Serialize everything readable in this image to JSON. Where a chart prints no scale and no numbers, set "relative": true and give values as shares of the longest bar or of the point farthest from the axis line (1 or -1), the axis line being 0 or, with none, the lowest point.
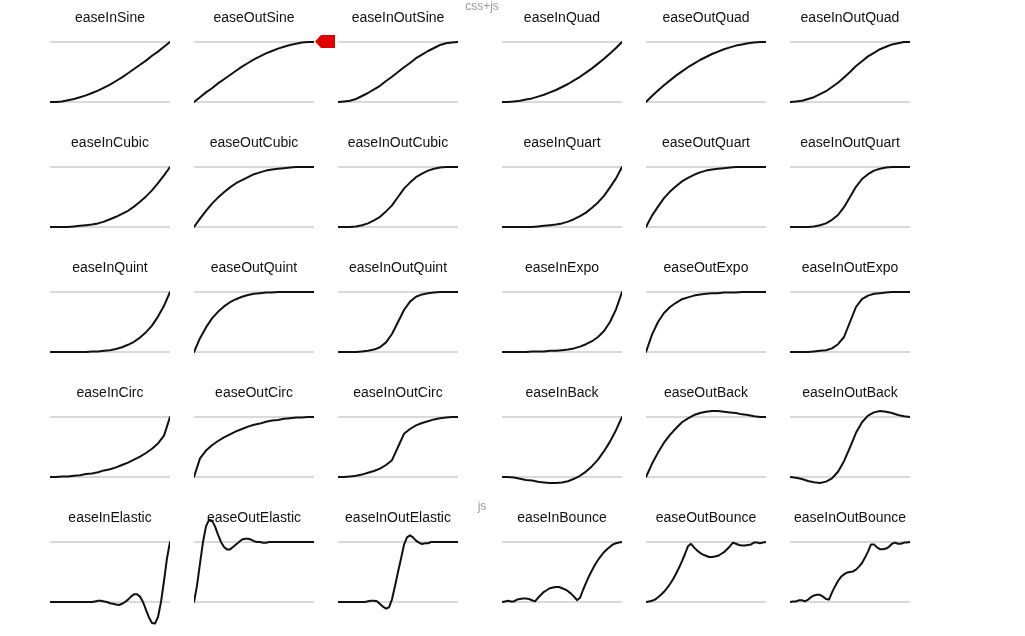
{
  "chart_data": [
    {
      "type": "line",
      "title": "easeInSine",
      "relative": true,
      "color": "#111111",
      "categories": [
        null,
        null,
        null,
        null,
        null,
        null,
        null,
        null,
        null,
        null,
        null,
        null,
        null,
        null,
        null,
        null,
        null,
        null,
        null,
        null,
        null
      ],
      "values": [
        0,
        0,
        0.01,
        0.03,
        0.05,
        0.08,
        0.11,
        0.15,
        0.19,
        0.24,
        0.29,
        0.35,
        0.41,
        0.48,
        0.55,
        0.62,
        0.69,
        0.77,
        0.84,
        0.92,
        1
      ],
      "ref_lines": [
        {
          "axis": "y",
          "value": 0,
          "color": "#cccccc"
        },
        {
          "axis": "y",
          "value": 1,
          "color": "#cccccc"
        }
      ]
    },
    {
      "type": "line",
      "title": "easeOutSine",
      "relative": true,
      "color": "#111111",
      "categories": [
        null,
        null,
        null,
        null,
        null,
        null,
        null,
        null,
        null,
        null,
        null,
        null,
        null,
        null,
        null,
        null,
        null,
        null,
        null,
        null,
        null
      ],
      "values": [
        0,
        0.08,
        0.16,
        0.23,
        0.31,
        0.38,
        0.45,
        0.52,
        0.59,
        0.65,
        0.71,
        0.76,
        0.81,
        0.85,
        0.89,
        0.92,
        0.95,
        0.97,
        0.99,
        1,
        1
      ],
      "ref_lines": [
        {
          "axis": "y",
          "value": 0,
          "color": "#cccccc"
        },
        {
          "axis": "y",
          "value": 1,
          "color": "#cccccc"
        }
      ]
    },
    {
      "type": "line",
      "title": "easeInOutSine",
      "relative": true,
      "color": "#111111",
      "categories": [
        null,
        null,
        null,
        null,
        null,
        null,
        null,
        null,
        null,
        null,
        null,
        null,
        null,
        null,
        null,
        null,
        null,
        null,
        null,
        null,
        null
      ],
      "values": [
        0,
        0.01,
        0.02,
        0.05,
        0.1,
        0.15,
        0.21,
        0.27,
        0.35,
        0.42,
        0.5,
        0.58,
        0.65,
        0.73,
        0.79,
        0.85,
        0.9,
        0.95,
        0.98,
        0.99,
        1
      ],
      "ref_lines": [
        {
          "axis": "y",
          "value": 0,
          "color": "#cccccc"
        },
        {
          "axis": "y",
          "value": 1,
          "color": "#cccccc"
        }
      ]
    },
    {
      "type": "line",
      "title": "easeInQuad",
      "relative": true,
      "color": "#111111",
      "annotations": [
        "css+js"
      ],
      "categories": [
        null,
        null,
        null,
        null,
        null,
        null,
        null,
        null,
        null,
        null,
        null,
        null,
        null,
        null,
        null,
        null,
        null,
        null,
        null,
        null,
        null
      ],
      "values": [
        0,
        0,
        0.01,
        0.02,
        0.04,
        0.06,
        0.09,
        0.12,
        0.16,
        0.2,
        0.25,
        0.3,
        0.36,
        0.42,
        0.49,
        0.56,
        0.64,
        0.72,
        0.81,
        0.9,
        1
      ],
      "ref_lines": [
        {
          "axis": "y",
          "value": 0,
          "color": "#cccccc"
        },
        {
          "axis": "y",
          "value": 1,
          "color": "#cccccc"
        }
      ]
    },
    {
      "type": "line",
      "title": "easeOutQuad",
      "relative": true,
      "color": "#111111",
      "categories": [
        null,
        null,
        null,
        null,
        null,
        null,
        null,
        null,
        null,
        null,
        null,
        null,
        null,
        null,
        null,
        null,
        null,
        null,
        null,
        null,
        null
      ],
      "values": [
        0,
        0.1,
        0.19,
        0.28,
        0.36,
        0.44,
        0.51,
        0.58,
        0.64,
        0.7,
        0.75,
        0.8,
        0.84,
        0.88,
        0.91,
        0.94,
        0.96,
        0.98,
        0.99,
        1,
        1
      ],
      "ref_lines": [
        {
          "axis": "y",
          "value": 0,
          "color": "#cccccc"
        },
        {
          "axis": "y",
          "value": 1,
          "color": "#cccccc"
        }
      ]
    },
    {
      "type": "line",
      "title": "easeInOutQuad",
      "relative": true,
      "color": "#111111",
      "categories": [
        null,
        null,
        null,
        null,
        null,
        null,
        null,
        null,
        null,
        null,
        null,
        null,
        null,
        null,
        null,
        null,
        null,
        null,
        null,
        null,
        null
      ],
      "values": [
        0,
        0.01,
        0.02,
        0.05,
        0.08,
        0.13,
        0.18,
        0.25,
        0.32,
        0.41,
        0.5,
        0.6,
        0.68,
        0.76,
        0.82,
        0.88,
        0.92,
        0.96,
        0.98,
        1,
        1
      ],
      "ref_lines": [
        {
          "axis": "y",
          "value": 0,
          "color": "#cccccc"
        },
        {
          "axis": "y",
          "value": 1,
          "color": "#cccccc"
        }
      ]
    },
    {
      "type": "line",
      "title": "easeInCubic",
      "relative": true,
      "color": "#111111",
      "categories": [
        null,
        null,
        null,
        null,
        null,
        null,
        null,
        null,
        null,
        null,
        null,
        null,
        null,
        null,
        null,
        null,
        null,
        null,
        null,
        null,
        null
      ],
      "values": [
        0,
        0,
        0,
        0,
        0.01,
        0.02,
        0.03,
        0.04,
        0.06,
        0.09,
        0.13,
        0.17,
        0.22,
        0.27,
        0.34,
        0.42,
        0.51,
        0.61,
        0.73,
        0.86,
        1
      ],
      "ref_lines": [
        {
          "axis": "y",
          "value": 0,
          "color": "#cccccc"
        },
        {
          "axis": "y",
          "value": 1,
          "color": "#cccccc"
        }
      ]
    },
    {
      "type": "line",
      "title": "easeOutCubic",
      "relative": true,
      "color": "#111111",
      "categories": [
        null,
        null,
        null,
        null,
        null,
        null,
        null,
        null,
        null,
        null,
        null,
        null,
        null,
        null,
        null,
        null,
        null,
        null,
        null,
        null,
        null
      ],
      "values": [
        0,
        0.14,
        0.27,
        0.39,
        0.49,
        0.58,
        0.66,
        0.73,
        0.78,
        0.83,
        0.88,
        0.91,
        0.94,
        0.96,
        0.97,
        0.98,
        0.99,
        1,
        1,
        1,
        1
      ],
      "ref_lines": [
        {
          "axis": "y",
          "value": 0,
          "color": "#cccccc"
        },
        {
          "axis": "y",
          "value": 1,
          "color": "#cccccc"
        }
      ]
    },
    {
      "type": "line",
      "title": "easeInOutCubic",
      "relative": true,
      "color": "#111111",
      "categories": [
        null,
        null,
        null,
        null,
        null,
        null,
        null,
        null,
        null,
        null,
        null,
        null,
        null,
        null,
        null,
        null,
        null,
        null,
        null,
        null,
        null
      ],
      "values": [
        0,
        0,
        0,
        0.01,
        0.03,
        0.06,
        0.11,
        0.17,
        0.26,
        0.36,
        0.5,
        0.64,
        0.74,
        0.83,
        0.89,
        0.94,
        0.97,
        0.99,
        1,
        1,
        1
      ],
      "ref_lines": [
        {
          "axis": "y",
          "value": 0,
          "color": "#cccccc"
        },
        {
          "axis": "y",
          "value": 1,
          "color": "#cccccc"
        }
      ]
    },
    {
      "type": "line",
      "title": "easeInQuart",
      "relative": true,
      "color": "#111111",
      "categories": [
        null,
        null,
        null,
        null,
        null,
        null,
        null,
        null,
        null,
        null,
        null,
        null,
        null,
        null,
        null,
        null,
        null,
        null,
        null,
        null,
        null
      ],
      "values": [
        0,
        0,
        0,
        0,
        0,
        0,
        0.01,
        0.02,
        0.03,
        0.04,
        0.06,
        0.09,
        0.13,
        0.18,
        0.24,
        0.32,
        0.41,
        0.52,
        0.66,
        0.81,
        1
      ],
      "ref_lines": [
        {
          "axis": "y",
          "value": 0,
          "color": "#cccccc"
        },
        {
          "axis": "y",
          "value": 1,
          "color": "#cccccc"
        }
      ]
    },
    {
      "type": "line",
      "title": "easeOutQuart",
      "relative": true,
      "color": "#111111",
      "categories": [
        null,
        null,
        null,
        null,
        null,
        null,
        null,
        null,
        null,
        null,
        null,
        null,
        null,
        null,
        null,
        null,
        null,
        null,
        null,
        null,
        null
      ],
      "values": [
        0,
        0.19,
        0.34,
        0.48,
        0.59,
        0.68,
        0.76,
        0.82,
        0.87,
        0.91,
        0.94,
        0.96,
        0.97,
        0.98,
        0.99,
        1,
        1,
        1,
        1,
        1,
        1
      ],
      "ref_lines": [
        {
          "axis": "y",
          "value": 0,
          "color": "#cccccc"
        },
        {
          "axis": "y",
          "value": 1,
          "color": "#cccccc"
        }
      ]
    },
    {
      "type": "line",
      "title": "easeInOutQuart",
      "relative": true,
      "color": "#111111",
      "categories": [
        null,
        null,
        null,
        null,
        null,
        null,
        null,
        null,
        null,
        null,
        null,
        null,
        null,
        null,
        null,
        null,
        null,
        null,
        null,
        null,
        null
      ],
      "values": [
        0,
        0,
        0,
        0,
        0.01,
        0.03,
        0.06,
        0.12,
        0.2,
        0.33,
        0.5,
        0.67,
        0.8,
        0.88,
        0.94,
        0.97,
        0.99,
        1,
        1,
        1,
        1
      ],
      "ref_lines": [
        {
          "axis": "y",
          "value": 0,
          "color": "#cccccc"
        },
        {
          "axis": "y",
          "value": 1,
          "color": "#cccccc"
        }
      ]
    },
    {
      "type": "line",
      "title": "easeInQuint",
      "relative": true,
      "color": "#111111",
      "categories": [
        null,
        null,
        null,
        null,
        null,
        null,
        null,
        null,
        null,
        null,
        null,
        null,
        null,
        null,
        null,
        null,
        null,
        null,
        null,
        null,
        null
      ],
      "values": [
        0,
        0,
        0,
        0,
        0,
        0,
        0,
        0.01,
        0.01,
        0.02,
        0.03,
        0.05,
        0.08,
        0.12,
        0.17,
        0.24,
        0.33,
        0.44,
        0.59,
        0.77,
        1
      ],
      "ref_lines": [
        {
          "axis": "y",
          "value": 0,
          "color": "#cccccc"
        },
        {
          "axis": "y",
          "value": 1,
          "color": "#cccccc"
        }
      ]
    },
    {
      "type": "line",
      "title": "easeOutQuint",
      "relative": true,
      "color": "#111111",
      "categories": [
        null,
        null,
        null,
        null,
        null,
        null,
        null,
        null,
        null,
        null,
        null,
        null,
        null,
        null,
        null,
        null,
        null,
        null,
        null,
        null,
        null
      ],
      "values": [
        0,
        0.23,
        0.41,
        0.56,
        0.67,
        0.76,
        0.83,
        0.88,
        0.92,
        0.95,
        0.97,
        0.98,
        0.99,
        0.99,
        1,
        1,
        1,
        1,
        1,
        1,
        1
      ],
      "ref_lines": [
        {
          "axis": "y",
          "value": 0,
          "color": "#cccccc"
        },
        {
          "axis": "y",
          "value": 1,
          "color": "#cccccc"
        }
      ]
    },
    {
      "type": "line",
      "title": "easeInOutQuint",
      "relative": true,
      "color": "#111111",
      "categories": [
        null,
        null,
        null,
        null,
        null,
        null,
        null,
        null,
        null,
        null,
        null,
        null,
        null,
        null,
        null,
        null,
        null,
        null,
        null,
        null,
        null
      ],
      "values": [
        0,
        0,
        0,
        0,
        0.01,
        0.02,
        0.04,
        0.08,
        0.16,
        0.3,
        0.5,
        0.7,
        0.84,
        0.92,
        0.96,
        0.98,
        0.99,
        1,
        1,
        1,
        1
      ],
      "ref_lines": [
        {
          "axis": "y",
          "value": 0,
          "color": "#cccccc"
        },
        {
          "axis": "y",
          "value": 1,
          "color": "#cccccc"
        }
      ]
    },
    {
      "type": "line",
      "title": "easeInExpo",
      "relative": true,
      "color": "#111111",
      "categories": [
        null,
        null,
        null,
        null,
        null,
        null,
        null,
        null,
        null,
        null,
        null,
        null,
        null,
        null,
        null,
        null,
        null,
        null,
        null,
        null,
        null
      ],
      "values": [
        0,
        0,
        0,
        0,
        0,
        0.01,
        0.01,
        0.01,
        0.02,
        0.02,
        0.03,
        0.04,
        0.06,
        0.09,
        0.13,
        0.18,
        0.25,
        0.35,
        0.5,
        0.71,
        1
      ],
      "ref_lines": [
        {
          "axis": "y",
          "value": 0,
          "color": "#cccccc"
        },
        {
          "axis": "y",
          "value": 1,
          "color": "#cccccc"
        }
      ]
    },
    {
      "type": "line",
      "title": "easeOutExpo",
      "relative": true,
      "color": "#111111",
      "categories": [
        null,
        null,
        null,
        null,
        null,
        null,
        null,
        null,
        null,
        null,
        null,
        null,
        null,
        null,
        null,
        null,
        null,
        null,
        null,
        null,
        null
      ],
      "values": [
        0,
        0.29,
        0.5,
        0.65,
        0.75,
        0.82,
        0.88,
        0.91,
        0.94,
        0.96,
        0.97,
        0.98,
        0.98,
        0.99,
        0.99,
        0.99,
        1,
        1,
        1,
        1,
        1
      ],
      "ref_lines": [
        {
          "axis": "y",
          "value": 0,
          "color": "#cccccc"
        },
        {
          "axis": "y",
          "value": 1,
          "color": "#cccccc"
        }
      ]
    },
    {
      "type": "line",
      "title": "easeInOutExpo",
      "relative": true,
      "color": "#111111",
      "categories": [
        null,
        null,
        null,
        null,
        null,
        null,
        null,
        null,
        null,
        null,
        null,
        null,
        null,
        null,
        null,
        null,
        null,
        null,
        null,
        null,
        null
      ],
      "values": [
        0,
        0,
        0,
        0,
        0.01,
        0.02,
        0.03,
        0.06,
        0.13,
        0.25,
        0.5,
        0.75,
        0.88,
        0.94,
        0.97,
        0.98,
        0.99,
        1,
        1,
        1,
        1
      ],
      "ref_lines": [
        {
          "axis": "y",
          "value": 0,
          "color": "#cccccc"
        },
        {
          "axis": "y",
          "value": 1,
          "color": "#cccccc"
        }
      ]
    },
    {
      "type": "line",
      "title": "easeInCirc",
      "relative": true,
      "color": "#111111",
      "categories": [
        null,
        null,
        null,
        null,
        null,
        null,
        null,
        null,
        null,
        null,
        null,
        null,
        null,
        null,
        null,
        null,
        null,
        null,
        null,
        null,
        null
      ],
      "values": [
        0,
        0,
        0.01,
        0.01,
        0.02,
        0.03,
        0.05,
        0.06,
        0.08,
        0.11,
        0.13,
        0.16,
        0.2,
        0.24,
        0.29,
        0.34,
        0.4,
        0.47,
        0.56,
        0.69,
        1
      ],
      "ref_lines": [
        {
          "axis": "y",
          "value": 0,
          "color": "#cccccc"
        },
        {
          "axis": "y",
          "value": 1,
          "color": "#cccccc"
        }
      ]
    },
    {
      "type": "line",
      "title": "easeOutCirc",
      "relative": true,
      "color": "#111111",
      "categories": [
        null,
        null,
        null,
        null,
        null,
        null,
        null,
        null,
        null,
        null,
        null,
        null,
        null,
        null,
        null,
        null,
        null,
        null,
        null,
        null,
        null
      ],
      "values": [
        0,
        0.31,
        0.44,
        0.53,
        0.6,
        0.66,
        0.71,
        0.76,
        0.8,
        0.84,
        0.87,
        0.89,
        0.92,
        0.94,
        0.95,
        0.97,
        0.98,
        0.99,
        0.99,
        1,
        1
      ],
      "ref_lines": [
        {
          "axis": "y",
          "value": 0,
          "color": "#cccccc"
        },
        {
          "axis": "y",
          "value": 1,
          "color": "#cccccc"
        }
      ]
    },
    {
      "type": "line",
      "title": "easeInOutCirc",
      "relative": true,
      "color": "#111111",
      "categories": [
        null,
        null,
        null,
        null,
        null,
        null,
        null,
        null,
        null,
        null,
        null,
        null,
        null,
        null,
        null,
        null,
        null,
        null,
        null,
        null,
        null
      ],
      "values": [
        0,
        0,
        0.01,
        0.02,
        0.04,
        0.07,
        0.1,
        0.14,
        0.2,
        0.28,
        0.5,
        0.72,
        0.8,
        0.86,
        0.9,
        0.93,
        0.96,
        0.98,
        0.99,
        1,
        1
      ],
      "ref_lines": [
        {
          "axis": "y",
          "value": 0,
          "color": "#cccccc"
        },
        {
          "axis": "y",
          "value": 1,
          "color": "#cccccc"
        }
      ]
    },
    {
      "type": "line",
      "title": "easeInBack",
      "relative": true,
      "color": "#111111",
      "categories": [
        null,
        null,
        null,
        null,
        null,
        null,
        null,
        null,
        null,
        null,
        null,
        null,
        null,
        null,
        null,
        null,
        null,
        null,
        null,
        null,
        null
      ],
      "values": [
        0,
        0,
        -0.01,
        -0.03,
        -0.05,
        -0.06,
        -0.08,
        -0.09,
        -0.1,
        -0.1,
        -0.09,
        -0.07,
        -0.03,
        0.02,
        0.09,
        0.18,
        0.29,
        0.43,
        0.59,
        0.78,
        1
      ],
      "ref_lines": [
        {
          "axis": "y",
          "value": 0,
          "color": "#cccccc"
        },
        {
          "axis": "y",
          "value": 1,
          "color": "#cccccc"
        }
      ]
    },
    {
      "type": "line",
      "title": "easeOutBack",
      "relative": true,
      "color": "#111111",
      "categories": [
        null,
        null,
        null,
        null,
        null,
        null,
        null,
        null,
        null,
        null,
        null,
        null,
        null,
        null,
        null,
        null,
        null,
        null,
        null,
        null,
        null
      ],
      "values": [
        0,
        0.2,
        0.37,
        0.52,
        0.64,
        0.74,
        0.83,
        0.89,
        0.94,
        0.97,
        0.99,
        1,
        1,
        0.99,
        0.98,
        0.97,
        0.95,
        0.94,
        0.92,
        0.91,
        0.91
      ],
      "ref_lines": [
        {
          "axis": "y",
          "value": 0,
          "color": "#cccccc"
        },
        {
          "axis": "y",
          "value": 0.91,
          "color": "#cccccc"
        }
      ]
    },
    {
      "type": "line",
      "title": "easeInOutBack",
      "relative": true,
      "color": "#111111",
      "categories": [
        null,
        null,
        null,
        null,
        null,
        null,
        null,
        null,
        null,
        null,
        null,
        null,
        null,
        null,
        null,
        null,
        null,
        null,
        null,
        null,
        null
      ],
      "values": [
        0,
        -0.01,
        -0.03,
        -0.06,
        -0.08,
        -0.09,
        -0.07,
        -0.02,
        0.08,
        0.24,
        0.45,
        0.67,
        0.83,
        0.93,
        0.98,
        1,
        0.99,
        0.97,
        0.94,
        0.92,
        0.91
      ],
      "ref_lines": [
        {
          "axis": "y",
          "value": 0,
          "color": "#cccccc"
        },
        {
          "axis": "y",
          "value": 0.91,
          "color": "#cccccc"
        }
      ]
    },
    {
      "type": "line",
      "title": "easeInElastic",
      "relative": true,
      "color": "#111111",
      "categories": [
        null,
        null,
        null,
        null,
        null,
        null,
        null,
        null,
        null,
        null,
        null,
        null,
        null,
        null,
        null,
        null,
        null,
        null,
        null,
        null,
        null,
        null,
        null,
        null,
        null,
        null,
        null,
        null,
        null,
        null,
        null,
        null,
        null,
        null,
        null,
        null,
        null,
        null,
        null,
        null,
        null
      ],
      "values": [
        0,
        0,
        0,
        0,
        0,
        0,
        0,
        0,
        0,
        0,
        0,
        0,
        0,
        0,
        0,
        0.01,
        0.02,
        0.02,
        0.01,
        0,
        -0.02,
        -0.03,
        -0.04,
        -0.05,
        -0.03,
        0,
        0.04,
        0.09,
        0.13,
        0.13,
        0.09,
        0,
        -0.13,
        -0.26,
        -0.35,
        -0.36,
        -0.25,
        0,
        0.35,
        0.73,
        1
      ],
      "ref_lines": [
        {
          "axis": "y",
          "value": 0,
          "color": "#cccccc"
        },
        {
          "axis": "y",
          "value": 1,
          "color": "#cccccc"
        }
      ]
    },
    {
      "type": "line",
      "title": "easeOutElastic",
      "relative": true,
      "color": "#111111",
      "categories": [
        null,
        null,
        null,
        null,
        null,
        null,
        null,
        null,
        null,
        null,
        null,
        null,
        null,
        null,
        null,
        null,
        null,
        null,
        null,
        null,
        null,
        null,
        null,
        null,
        null,
        null,
        null,
        null,
        null,
        null,
        null,
        null,
        null,
        null,
        null,
        null,
        null,
        null,
        null,
        null,
        null
      ],
      "values": [
        0,
        0.2,
        0.47,
        0.73,
        0.92,
        1,
        0.99,
        0.92,
        0.82,
        0.73,
        0.67,
        0.64,
        0.64,
        0.67,
        0.7,
        0.73,
        0.76,
        0.77,
        0.77,
        0.76,
        0.74,
        0.73,
        0.73,
        0.72,
        0.72,
        0.73,
        0.73,
        0.73,
        0.73,
        0.73,
        0.73,
        0.73,
        0.73,
        0.73,
        0.73,
        0.73,
        0.73,
        0.73,
        0.73,
        0.73,
        0.73
      ],
      "ref_lines": [
        {
          "axis": "y",
          "value": 0,
          "color": "#cccccc"
        },
        {
          "axis": "y",
          "value": 0.73,
          "color": "#cccccc"
        }
      ]
    },
    {
      "type": "line",
      "title": "easeInOutElastic",
      "relative": true,
      "color": "#111111",
      "categories": [
        null,
        null,
        null,
        null,
        null,
        null,
        null,
        null,
        null,
        null,
        null,
        null,
        null,
        null,
        null,
        null,
        null,
        null,
        null,
        null,
        null,
        null,
        null,
        null,
        null,
        null,
        null,
        null,
        null,
        null,
        null,
        null,
        null,
        null,
        null,
        null,
        null,
        null,
        null,
        null,
        null
      ],
      "values": [
        0,
        0,
        0,
        0,
        0,
        0,
        0,
        0,
        0,
        0,
        0.01,
        0.02,
        0.02,
        0.01,
        -0.03,
        -0.07,
        -0.1,
        -0.08,
        0.04,
        0.24,
        0.45,
        0.65,
        0.86,
        0.97,
        1,
        0.97,
        0.92,
        0.89,
        0.87,
        0.88,
        0.88,
        0.9,
        0.9,
        0.9,
        0.9,
        0.9,
        0.9,
        0.9,
        0.9,
        0.9,
        0.9
      ],
      "ref_lines": [
        {
          "axis": "y",
          "value": 0,
          "color": "#cccccc"
        },
        {
          "axis": "y",
          "value": 0.9,
          "color": "#cccccc"
        }
      ]
    },
    {
      "type": "line",
      "title": "easeInBounce",
      "relative": true,
      "color": "#111111",
      "annotations": [
        "js"
      ],
      "categories": [
        null,
        null,
        null,
        null,
        null,
        null,
        null,
        null,
        null,
        null,
        null,
        null,
        null,
        null,
        null,
        null,
        null,
        null,
        null,
        null,
        null,
        null,
        null,
        null,
        null,
        null,
        null,
        null,
        null,
        null,
        null,
        null,
        null,
        null,
        null,
        null,
        null,
        null,
        null,
        null,
        null
      ],
      "values": [
        0,
        0.01,
        0.02,
        0.01,
        0.01,
        0.04,
        0.05,
        0.06,
        0.06,
        0.05,
        0.03,
        0.01,
        0.07,
        0.12,
        0.17,
        0.2,
        0.23,
        0.24,
        0.25,
        0.25,
        0.23,
        0.21,
        0.18,
        0.14,
        0.09,
        0.03,
        0.07,
        0.2,
        0.32,
        0.43,
        0.53,
        0.62,
        0.7,
        0.77,
        0.83,
        0.88,
        0.92,
        0.96,
        0.98,
        0.99,
        1
      ],
      "ref_lines": [
        {
          "axis": "y",
          "value": 0,
          "color": "#cccccc"
        },
        {
          "axis": "y",
          "value": 1,
          "color": "#cccccc"
        }
      ]
    },
    {
      "type": "line",
      "title": "easeOutBounce",
      "relative": true,
      "color": "#111111",
      "categories": [
        null,
        null,
        null,
        null,
        null,
        null,
        null,
        null,
        null,
        null,
        null,
        null,
        null,
        null,
        null,
        null,
        null,
        null,
        null,
        null,
        null,
        null,
        null,
        null,
        null,
        null,
        null,
        null,
        null,
        null,
        null,
        null,
        null,
        null,
        null,
        null,
        null,
        null,
        null,
        null,
        null
      ],
      "values": [
        0,
        0.01,
        0.02,
        0.04,
        0.08,
        0.12,
        0.17,
        0.23,
        0.3,
        0.38,
        0.47,
        0.57,
        0.68,
        0.8,
        0.93,
        0.97,
        0.91,
        0.86,
        0.82,
        0.79,
        0.77,
        0.75,
        0.75,
        0.76,
        0.77,
        0.8,
        0.83,
        0.88,
        0.93,
        0.99,
        0.97,
        0.95,
        0.94,
        0.94,
        0.95,
        0.96,
        0.99,
        0.99,
        0.98,
        0.99,
        1
      ],
      "ref_lines": [
        {
          "axis": "y",
          "value": 0,
          "color": "#cccccc"
        },
        {
          "axis": "y",
          "value": 1,
          "color": "#cccccc"
        }
      ]
    },
    {
      "type": "line",
      "title": "easeInOutBounce",
      "relative": true,
      "color": "#111111",
      "categories": [
        null,
        null,
        null,
        null,
        null,
        null,
        null,
        null,
        null,
        null,
        null,
        null,
        null,
        null,
        null,
        null,
        null,
        null,
        null,
        null,
        null,
        null,
        null,
        null,
        null,
        null,
        null,
        null,
        null,
        null,
        null,
        null,
        null,
        null,
        null,
        null,
        null,
        null,
        null,
        null,
        null
      ],
      "values": [
        0,
        0.01,
        0.01,
        0.03,
        0.03,
        0.01,
        0.04,
        0.08,
        0.11,
        0.12,
        0.12,
        0.09,
        0.05,
        0.04,
        0.16,
        0.26,
        0.35,
        0.42,
        0.46,
        0.49,
        0.5,
        0.51,
        0.54,
        0.59,
        0.65,
        0.74,
        0.84,
        0.96,
        0.96,
        0.91,
        0.88,
        0.88,
        0.89,
        0.92,
        0.97,
        0.99,
        0.97,
        0.97,
        0.99,
        0.99,
        1
      ],
      "ref_lines": [
        {
          "axis": "y",
          "value": 0,
          "color": "#cccccc"
        },
        {
          "axis": "y",
          "value": 1,
          "color": "#cccccc"
        }
      ]
    }
  ]
}
